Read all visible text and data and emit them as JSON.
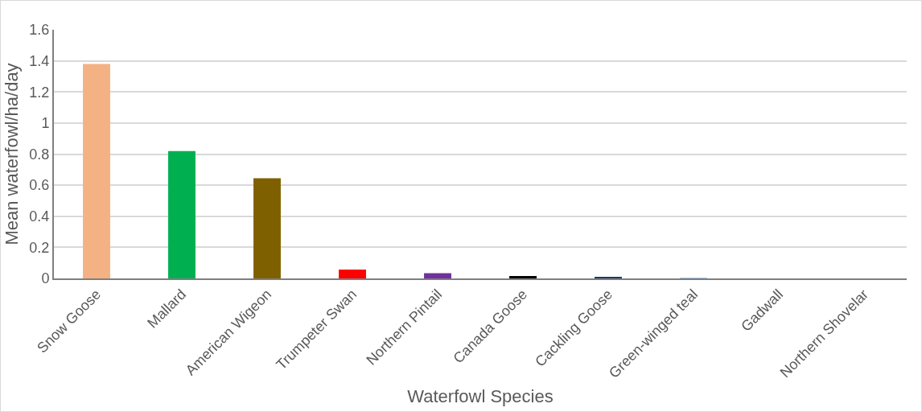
{
  "chart_data": {
    "type": "bar",
    "xlabel": "Waterfowl Species",
    "ylabel": "Mean waterfowl/ha/day",
    "categories": [
      "Snow Goose",
      "Mallard",
      "American Wigeon",
      "Trumpeter Swan",
      "Northern Pintail",
      "Canada Goose",
      "Cackling Goose",
      "Green-winged teal",
      "Gadwall",
      "Northern Shovelar"
    ],
    "values": [
      1.38,
      0.82,
      0.645,
      0.057,
      0.034,
      0.015,
      0.008,
      0.003,
      0,
      0
    ],
    "colors": [
      "#f4b183",
      "#00b050",
      "#7f6000",
      "#ff0000",
      "#7030a0",
      "#000000",
      "#1f3864",
      "#9dc3e6",
      "#a5a5a5",
      "#a5a5a5"
    ],
    "ylim": [
      0,
      1.6
    ],
    "yticks": [
      0,
      {
        "value": 0.2,
        "label": "0.2"
      },
      {
        "value": 0.4,
        "label": "0.4"
      },
      {
        "value": 0.6,
        "label": "0.6"
      },
      {
        "value": 0.8,
        "label": "0.8"
      },
      1,
      {
        "value": 1.2,
        "label": "1.2"
      },
      {
        "value": 1.4,
        "label": "1.4"
      },
      {
        "value": 1.6,
        "label": "1.6"
      }
    ],
    "grid": "y",
    "legend": false
  }
}
